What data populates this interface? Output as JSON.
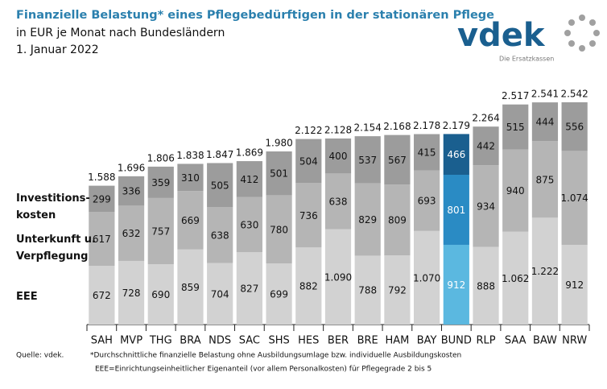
{
  "title": "Finanzielle Belastung* eines Pflegebedürftigen in der stationären Pflege",
  "subtitle": "in EUR je Monat nach Bundesländern",
  "date": "1. Januar 2022",
  "logo": {
    "name": "vdek",
    "tagline": "Die Ersatzkassen"
  },
  "chart_data": {
    "type": "stacked_bar",
    "categories": [
      "SAH",
      "MVP",
      "THG",
      "BRA",
      "NDS",
      "SAC",
      "SHS",
      "HES",
      "BER",
      "BRE",
      "HAM",
      "BAY",
      "BUND",
      "RLP",
      "SAA",
      "BAW",
      "NRW"
    ],
    "highlight": "BUND",
    "series": [
      {
        "name": "EEE",
        "color": "#d2d2d2",
        "highlight_color": "#5bb8e0",
        "values": [
          672,
          728,
          690,
          859,
          704,
          827,
          699,
          882,
          1090,
          788,
          792,
          1070,
          912,
          888,
          1062,
          1222,
          912
        ],
        "value_labels": [
          "672",
          "728",
          "690",
          "859",
          "704",
          "827",
          "699",
          "882",
          "1.090",
          "788",
          "792",
          "1.070",
          "912",
          "888",
          "1.062",
          "1.222",
          "912"
        ]
      },
      {
        "name": "Unterkunft u.\nVerpflegung",
        "color": "#b5b5b5",
        "highlight_color": "#2a8bc4",
        "values": [
          617,
          632,
          757,
          669,
          638,
          630,
          780,
          736,
          638,
          829,
          809,
          693,
          801,
          934,
          940,
          875,
          1074
        ],
        "value_labels": [
          "617",
          "632",
          "757",
          "669",
          "638",
          "630",
          "780",
          "736",
          "638",
          "829",
          "809",
          "693",
          "801",
          "934",
          "940",
          "875",
          "1.074"
        ]
      },
      {
        "name": "Investitions-\nkosten",
        "color": "#9c9c9c",
        "highlight_color": "#1a5f8f",
        "values": [
          299,
          336,
          359,
          310,
          505,
          412,
          501,
          504,
          400,
          537,
          567,
          415,
          466,
          442,
          515,
          444,
          556
        ],
        "value_labels": [
          "299",
          "336",
          "359",
          "310",
          "505",
          "412",
          "501",
          "504",
          "400",
          "537",
          "567",
          "415",
          "466",
          "442",
          "515",
          "444",
          "556"
        ]
      }
    ],
    "totals": {
      "values": [
        1588,
        1696,
        1806,
        1838,
        1847,
        1869,
        1980,
        2122,
        2128,
        2154,
        2168,
        2178,
        2179,
        2264,
        2517,
        2541,
        2542
      ],
      "value_labels": [
        "1.588",
        "1.696",
        "1.806",
        "1.838",
        "1.847",
        "1.869",
        "1.980",
        "2.122",
        "2.128",
        "2.154",
        "2.168",
        "2.178",
        "2.179",
        "2.264",
        "2.517",
        "2.541",
        "2.542"
      ]
    }
  },
  "footnotes": {
    "source": "Quelle: vdek.",
    "notes": [
      "*Durchschnittliche finanzielle Belastung ohne Ausbildungsumlage bzw. individuelle Ausbildungskosten",
      "EEE=Einrichtungseinheitlicher Eigenanteil (vor allem Personalkosten) für Pflegegrade 2 bis 5"
    ]
  }
}
